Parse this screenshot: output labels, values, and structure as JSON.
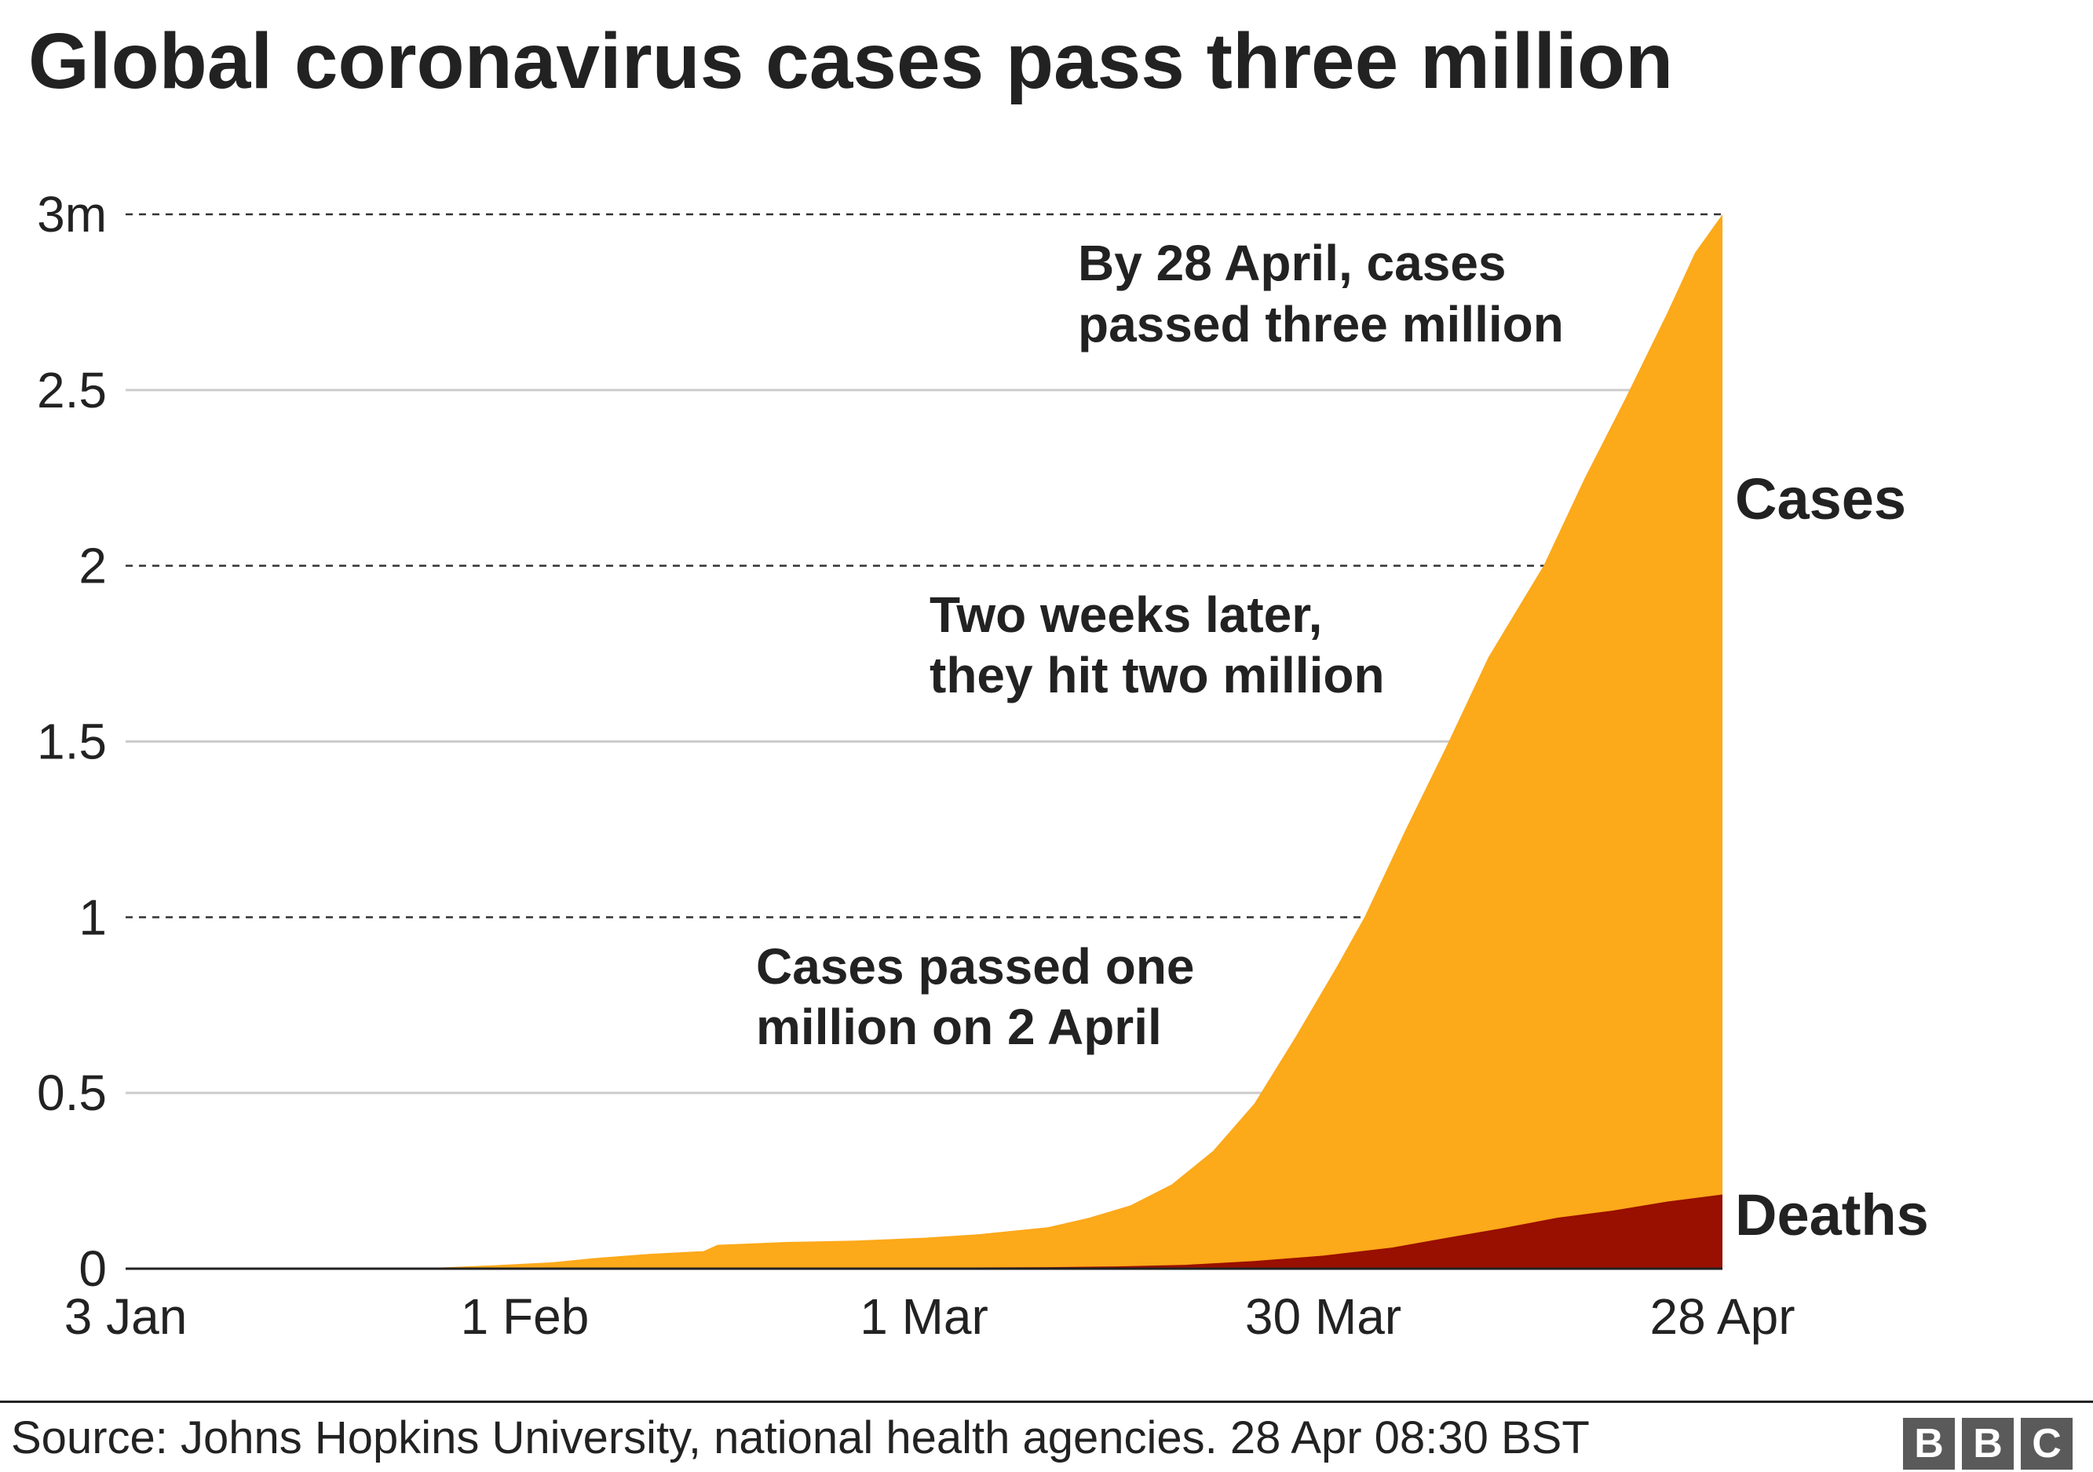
{
  "title": "Global coronavirus cases pass three million",
  "source": "Source: Johns Hopkins University, national health agencies. 28 Apr 08:30 BST",
  "logo": {
    "letters": [
      "B",
      "B",
      "C"
    ]
  },
  "colors": {
    "cases": "#FCA91A",
    "deaths": "#990F00",
    "text": "#222222",
    "grid": "#CCCCCC",
    "logo": "#5A5A5A"
  },
  "chart_data": {
    "type": "area",
    "title": "Global coronavirus cases pass three million",
    "xlabel": "",
    "ylabel": "",
    "x_range": [
      "2020-01-03",
      "2020-04-28"
    ],
    "ylim": [
      0,
      3000000
    ],
    "y_ticks": [
      {
        "value": 0,
        "label": "0",
        "dashed": false
      },
      {
        "value": 500000,
        "label": "0.5",
        "dashed": false
      },
      {
        "value": 1000000,
        "label": "1",
        "dashed": true
      },
      {
        "value": 1500000,
        "label": "1.5",
        "dashed": false
      },
      {
        "value": 2000000,
        "label": "2",
        "dashed": true
      },
      {
        "value": 2500000,
        "label": "2.5",
        "dashed": false
      },
      {
        "value": 3000000,
        "label": "3m",
        "dashed": true
      }
    ],
    "x_ticks": [
      {
        "date": "2020-01-03",
        "label": "3 Jan"
      },
      {
        "date": "2020-02-01",
        "label": "1 Feb"
      },
      {
        "date": "2020-03-01",
        "label": "1 Mar"
      },
      {
        "date": "2020-03-30",
        "label": "30 Mar"
      },
      {
        "date": "2020-04-28",
        "label": "28 Apr"
      }
    ],
    "grid": true,
    "series": [
      {
        "name": "Cases",
        "color": "#FCA91A",
        "points": [
          [
            "2020-01-03",
            0
          ],
          [
            "2020-01-20",
            300
          ],
          [
            "2020-01-25",
            2000
          ],
          [
            "2020-01-30",
            10000
          ],
          [
            "2020-02-03",
            18000
          ],
          [
            "2020-02-06",
            30000
          ],
          [
            "2020-02-10",
            42000
          ],
          [
            "2020-02-14",
            50000
          ],
          [
            "2020-02-15",
            68000
          ],
          [
            "2020-02-20",
            76000
          ],
          [
            "2020-02-25",
            80000
          ],
          [
            "2020-03-01",
            88000
          ],
          [
            "2020-03-05",
            98000
          ],
          [
            "2020-03-10",
            118000
          ],
          [
            "2020-03-13",
            145000
          ],
          [
            "2020-03-16",
            180000
          ],
          [
            "2020-03-19",
            240000
          ],
          [
            "2020-03-22",
            335000
          ],
          [
            "2020-03-25",
            470000
          ],
          [
            "2020-03-28",
            660000
          ],
          [
            "2020-03-31",
            860000
          ],
          [
            "2020-04-02",
            1000000
          ],
          [
            "2020-04-05",
            1250000
          ],
          [
            "2020-04-08",
            1490000
          ],
          [
            "2020-04-11",
            1740000
          ],
          [
            "2020-04-15",
            2000000
          ],
          [
            "2020-04-18",
            2250000
          ],
          [
            "2020-04-21",
            2480000
          ],
          [
            "2020-04-24",
            2720000
          ],
          [
            "2020-04-26",
            2890000
          ],
          [
            "2020-04-28",
            3000000
          ]
        ]
      },
      {
        "name": "Deaths",
        "color": "#990F00",
        "points": [
          [
            "2020-01-03",
            0
          ],
          [
            "2020-03-01",
            3000
          ],
          [
            "2020-03-10",
            4300
          ],
          [
            "2020-03-15",
            6500
          ],
          [
            "2020-03-20",
            11000
          ],
          [
            "2020-03-25",
            22000
          ],
          [
            "2020-03-30",
            37000
          ],
          [
            "2020-04-04",
            60000
          ],
          [
            "2020-04-08",
            88000
          ],
          [
            "2020-04-12",
            115000
          ],
          [
            "2020-04-16",
            145000
          ],
          [
            "2020-04-20",
            165000
          ],
          [
            "2020-04-24",
            191000
          ],
          [
            "2020-04-28",
            211000
          ]
        ]
      }
    ],
    "annotations": [
      {
        "lines": [
          "By 28 April, cases",
          "passed three million"
        ]
      },
      {
        "lines": [
          "Two weeks later,",
          "they hit two million"
        ]
      },
      {
        "lines": [
          "Cases passed one",
          "million on 2 April"
        ]
      }
    ],
    "series_labels": [
      "Cases",
      "Deaths"
    ]
  }
}
